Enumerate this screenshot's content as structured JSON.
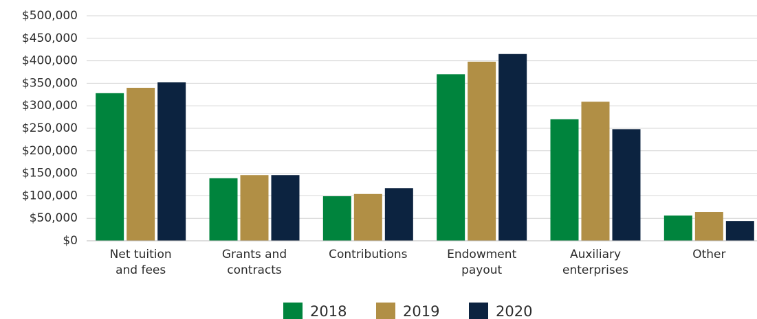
{
  "chart_data": {
    "type": "bar",
    "categories": [
      "Net tuition\nand fees",
      "Grants and\ncontracts",
      "Contributions",
      "Endowment\npayout",
      "Auxiliary\nenterprises",
      "Other"
    ],
    "series": [
      {
        "name": "2018",
        "color": "#00843d",
        "values": [
          328000,
          139000,
          99000,
          370000,
          270000,
          56000
        ]
      },
      {
        "name": "2019",
        "color": "#b18f45",
        "values": [
          340000,
          146000,
          104000,
          398000,
          309000,
          64000
        ]
      },
      {
        "name": "2020",
        "color": "#0c2340",
        "values": [
          352000,
          146000,
          117000,
          415000,
          248000,
          44000
        ]
      }
    ],
    "ylim": [
      0,
      500000
    ],
    "yticks": [
      {
        "value": 0,
        "label": "$0"
      },
      {
        "value": 50000,
        "label": "$50,000"
      },
      {
        "value": 100000,
        "label": "$100,000"
      },
      {
        "value": 150000,
        "label": "$150,000"
      },
      {
        "value": 200000,
        "label": "$200,000"
      },
      {
        "value": 250000,
        "label": "$250,000"
      },
      {
        "value": 300000,
        "label": "$300,000"
      },
      {
        "value": 350000,
        "label": "$350,000"
      },
      {
        "value": 400000,
        "label": "$400,000"
      },
      {
        "value": 450000,
        "label": "$450,000"
      },
      {
        "value": 500000,
        "label": "$500,000"
      }
    ],
    "grid": true,
    "legend": "bottom"
  }
}
